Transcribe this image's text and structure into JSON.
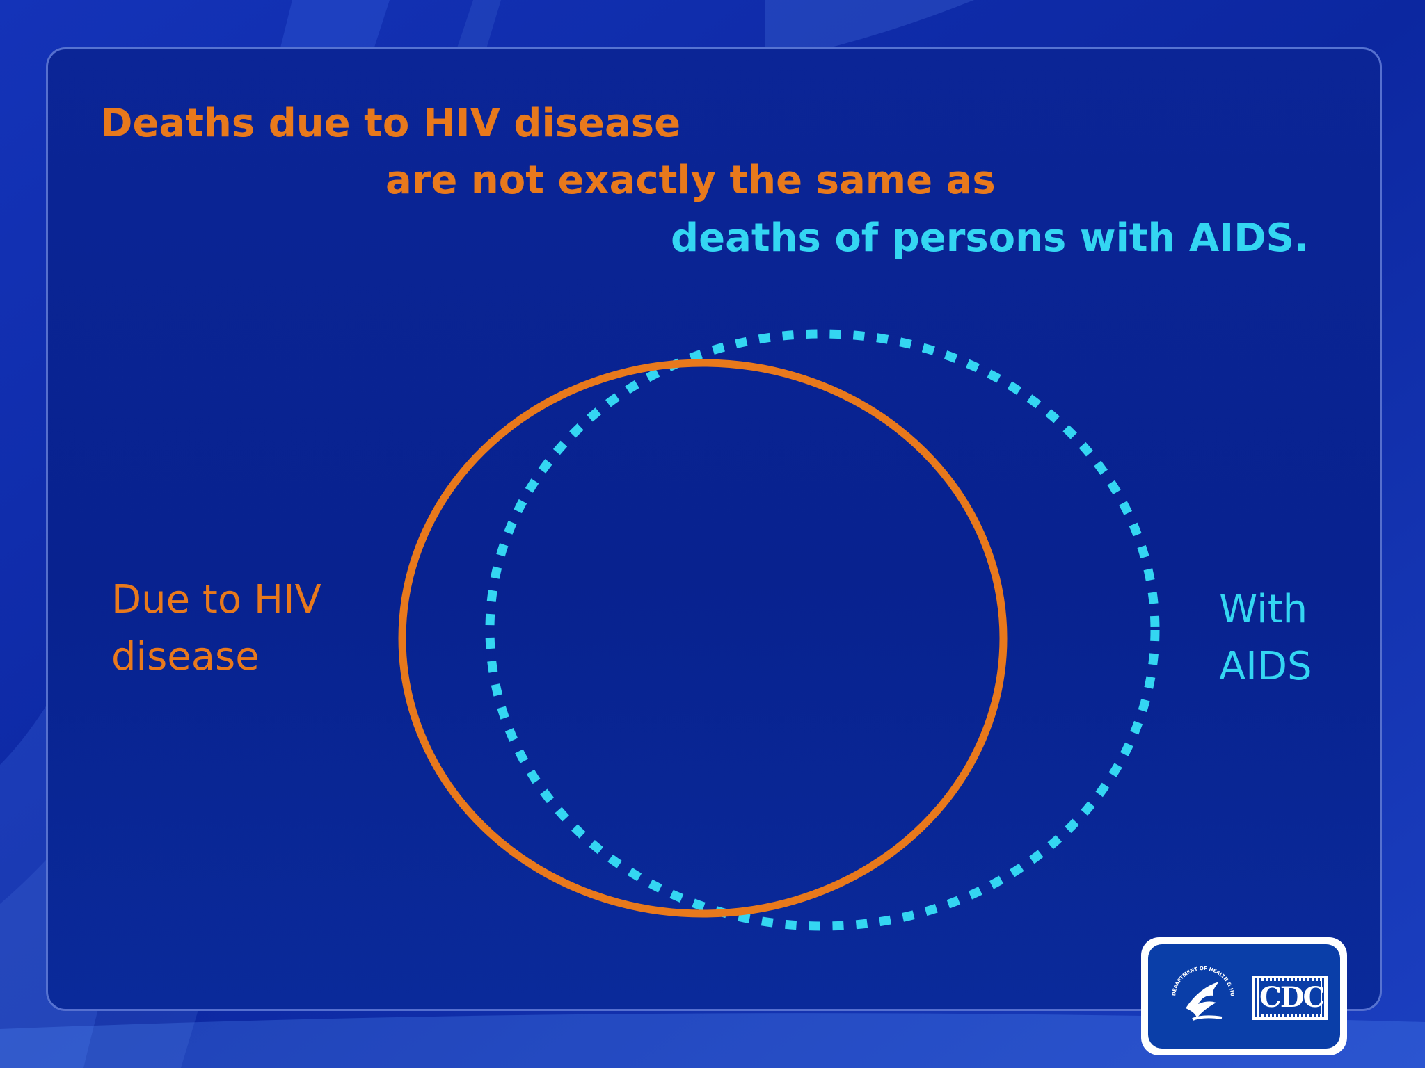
{
  "slide": {
    "title_line_1": "Deaths due to HIV disease",
    "title_line_2": "are not exactly the same as",
    "title_line_3": "deaths of persons with AIDS."
  },
  "diagram": {
    "sets": [
      {
        "id": "hiv",
        "label_lines": [
          "Due to HIV",
          "disease"
        ],
        "stroke": "solid",
        "color": "#e8791c"
      },
      {
        "id": "aids",
        "label_lines": [
          "With",
          "AIDS"
        ],
        "stroke": "dotted",
        "color": "#34d6f2"
      }
    ]
  },
  "logo": {
    "text": "CDC",
    "seal_text": "DEPARTMENT OF HEALTH & HUMAN SERVICES · USA"
  },
  "colors": {
    "orange": "#e8791c",
    "cyan": "#34d6f2",
    "background": "#0b2596"
  }
}
